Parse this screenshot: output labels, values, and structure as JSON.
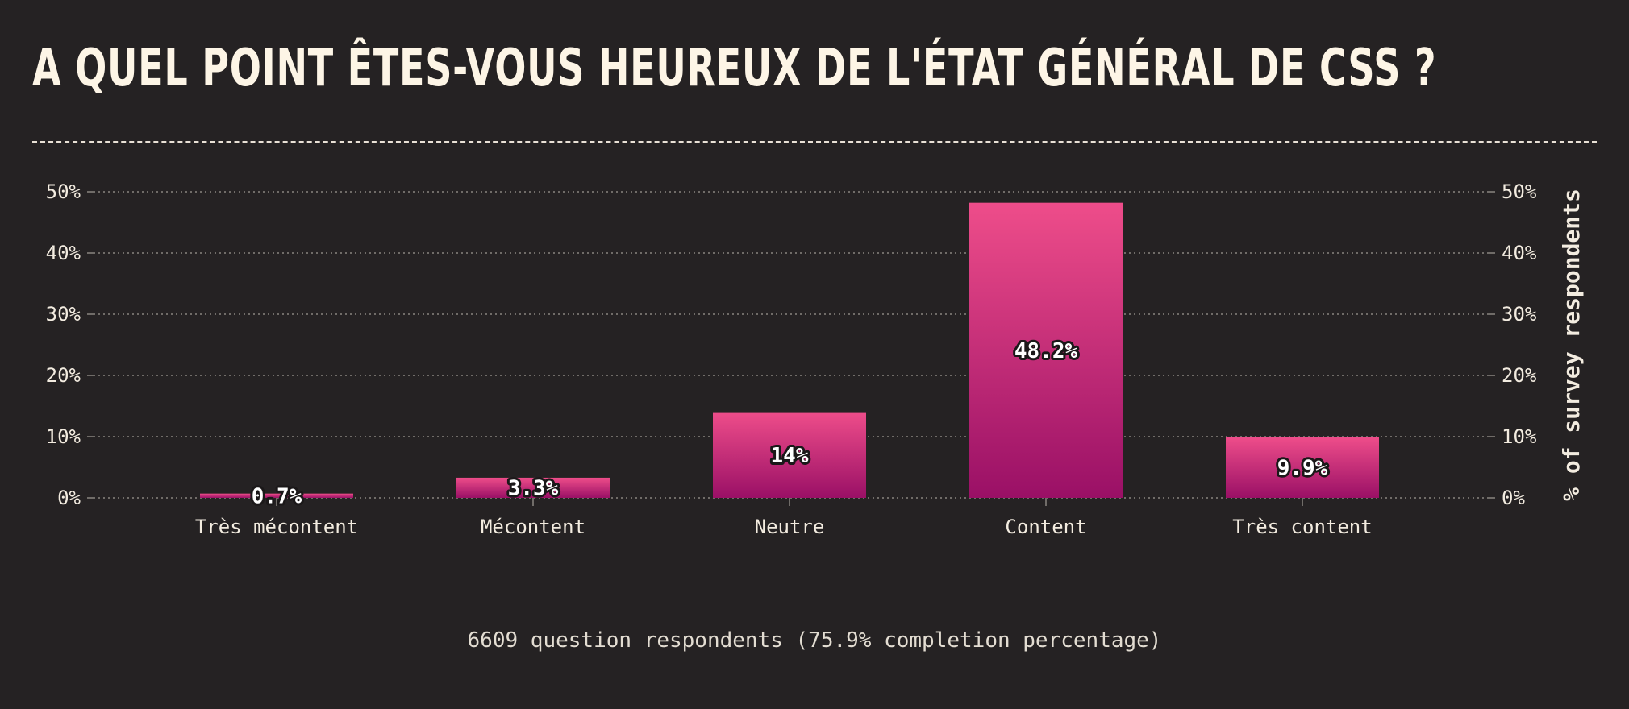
{
  "title": "A QUEL POINT ÊTES-VOUS HEUREUX DE L'ÉTAT GÉNÉRAL DE CSS ?",
  "footer": "6609 question respondents (75.9% completion percentage)",
  "colors": {
    "background": "#252223",
    "bar_top": "#ee4d8a",
    "bar_bottom": "#9a1066",
    "text": "#fdf5e6",
    "grid": "#8a8480"
  },
  "chart_data": {
    "type": "bar",
    "categories": [
      "Très mécontent",
      "Mécontent",
      "Neutre",
      "Content",
      "Très content"
    ],
    "values": [
      0.7,
      3.3,
      14,
      48.2,
      9.9
    ],
    "value_labels": [
      "0.7%",
      "3.3%",
      "14%",
      "48.2%",
      "9.9%"
    ],
    "ylim": [
      0,
      50
    ],
    "yticks": [
      0,
      10,
      20,
      30,
      40,
      50
    ],
    "ytick_labels": [
      "0%",
      "10%",
      "20%",
      "30%",
      "40%",
      "50%"
    ],
    "ylabel": "% of survey respondents",
    "grid": true,
    "axes": "left and right"
  }
}
